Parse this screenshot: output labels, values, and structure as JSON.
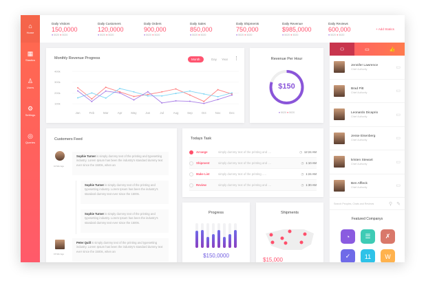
{
  "sidebar": {
    "items": [
      {
        "label": "Home",
        "icon": "home-icon"
      },
      {
        "label": "Stastics",
        "icon": "building-icon"
      },
      {
        "label": "Users",
        "icon": "users-icon"
      },
      {
        "label": "Settings",
        "icon": "gear-icon"
      },
      {
        "label": "Queries",
        "icon": "queries-icon"
      }
    ]
  },
  "stats": [
    {
      "label": "Daily Visitors",
      "value": "150,0000",
      "sub": "5020",
      "sub2": "5020"
    },
    {
      "label": "Daily Customers",
      "value": "120,0000",
      "sub": "5020",
      "sub2": "5020"
    },
    {
      "label": "Daily Orders",
      "value": "900,000",
      "sub": "5020",
      "sub2": "5020"
    },
    {
      "label": "Daily Sales",
      "value": "850,000",
      "sub": "5020",
      "sub2": "5020"
    },
    {
      "label": "Daily Shipments",
      "value": "750,000",
      "sub": "5020",
      "sub2": "5020"
    },
    {
      "label": "Daily Revenue",
      "value": "$985,0000",
      "sub": "5020",
      "sub2": "5020"
    },
    {
      "label": "Daily Reviews",
      "value": "600,000",
      "sub": "5020",
      "sub2": "5020"
    }
  ],
  "add_statics": "+ Add Statics",
  "revenue_chart": {
    "title": "Monthly Revenue Progress",
    "tabs": [
      "Month",
      "Day",
      "Year"
    ]
  },
  "chart_data": {
    "type": "line",
    "categories": [
      "Jan",
      "Feb",
      "Mar",
      "Apr",
      "May",
      "Jun",
      "Jul",
      "Aug",
      "Sep",
      "Oct",
      "Nov",
      "Dec"
    ],
    "yticks": [
      "400k",
      "300k",
      "200k",
      "100k"
    ],
    "ylim": [
      0,
      400000
    ],
    "grid": true,
    "series": [
      {
        "color": "#ff7f7f",
        "values": [
          248000,
          144000,
          252000,
          210000,
          167000,
          185000,
          210000,
          237000,
          180000,
          121000,
          230000,
          190000
        ]
      },
      {
        "color": "#7fd6f5",
        "values": [
          154000,
          200000,
          152000,
          241000,
          210000,
          172000,
          172000,
          195000,
          217000,
          190000,
          165000,
          200000
        ]
      },
      {
        "color": "#a77be6",
        "values": [
          219000,
          120000,
          217000,
          200000,
          135000,
          211000,
          107000,
          126000,
          122000,
          102000,
          139000,
          180000
        ]
      }
    ]
  },
  "revenue_hour": {
    "title": "Revenue Per Hour",
    "value": "$150",
    "progress": 0.8,
    "sub": "5020",
    "sub2": "5020"
  },
  "right_tabs": [
    "people-icon",
    "chat-icon",
    "thumbs-up-icon"
  ],
  "people": [
    {
      "name": "Jennifer Lawrence",
      "role": "Chief Authority"
    },
    {
      "name": "Brad Pitt",
      "role": "Chief Authority"
    },
    {
      "name": "Leonardo Dicaprio",
      "role": "Chief Authority"
    },
    {
      "name": "Jesse Eisenberg",
      "role": "Chief Authority"
    },
    {
      "name": "kristen Stewart",
      "role": "Chief Authority"
    },
    {
      "name": "Ben Affleck",
      "role": "Chief Authority"
    }
  ],
  "search_placeholder": "Search Peoples, Chats and Reviews",
  "featured": {
    "title": "Featured Companys",
    "colors": [
      "#8a5be0",
      "#3ecbb5",
      "#d9786a",
      "#6f6ae8",
      "#2ec2e8",
      "#ffb24d"
    ]
  },
  "feed": {
    "title": "Customers Feed",
    "items": [
      {
        "name": "Sophie Turner",
        "text": " is simply dummy text of the printing and typesetting industry. Lorem Ipsum has been the industry's standard dummy text ever since the 1500s, when an",
        "time": "10 Min Ago"
      },
      {
        "name": "Sophie Turner",
        "text": " is simply dummy text of the printing and typesetting industry. Lorem Ipsum has been the industry's standard dummy text ever since the 1500s."
      },
      {
        "name": "Sophie Turner",
        "text": " is simply dummy text of the printing and typesetting industry. Lorem Ipsum has been the industry's standard dummy text ever since the 1500s."
      },
      {
        "name": "Peter Quill",
        "text": " is simply dummy text of the printing and typesetting industry. Lorem Ipsum has been the industry's standard dummy text ever since the 1500s, when an",
        "time": "15 Min Ago"
      }
    ]
  },
  "tasks": {
    "title": "Todays Task",
    "items": [
      {
        "name": "Arrange",
        "desc": "simply dummy text of the printing and ....",
        "time": "12:24 AM",
        "done": true
      },
      {
        "name": "Shipment",
        "desc": "simply dummy text of the printing and ....",
        "time": "1:10 AM",
        "done": false
      },
      {
        "name": "Make List",
        "desc": "simply dummy text of the printing .....",
        "time": "1:24 AM",
        "done": false
      },
      {
        "name": "Review",
        "desc": "simply dummy text of the printing and ....",
        "time": "1:30 AM",
        "done": false
      }
    ]
  },
  "progress": {
    "title": "Progress",
    "value": "$150,0000",
    "bars": [
      0.7,
      0.72,
      0.45,
      0.55,
      0.72,
      0.45,
      0.55,
      0.72
    ]
  },
  "shipments": {
    "title": "Shipments",
    "value": "$15,000"
  }
}
